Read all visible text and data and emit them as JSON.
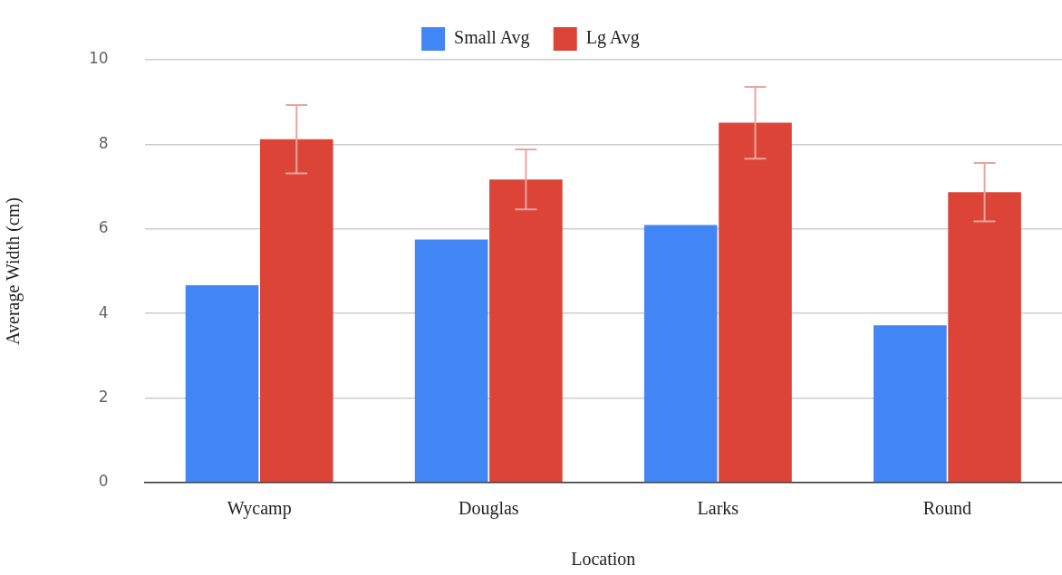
{
  "chart_data": {
    "type": "bar",
    "xlabel": "Location",
    "ylabel": "Average Width (cm)",
    "categories": [
      "Wycamp",
      "Douglas",
      "Larks",
      "Round"
    ],
    "series": [
      {
        "name": "Small Avg",
        "color": "#4285f4",
        "values": [
          4.67,
          5.75,
          6.09,
          3.72
        ]
      },
      {
        "name": "Lg Avg",
        "color": "#db4437",
        "values": [
          8.12,
          7.17,
          8.51,
          6.87
        ],
        "errors": [
          0.81,
          0.71,
          0.85,
          0.69
        ]
      }
    ],
    "ylim": [
      0,
      10
    ],
    "yticks": [
      0,
      2,
      4,
      6,
      8,
      10
    ],
    "grid": "y",
    "legend": "top"
  }
}
